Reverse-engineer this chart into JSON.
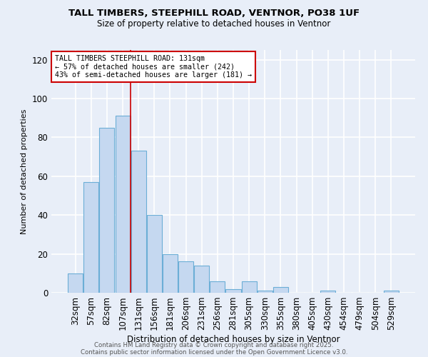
{
  "title_line1": "TALL TIMBERS, STEEPHILL ROAD, VENTNOR, PO38 1UF",
  "title_line2": "Size of property relative to detached houses in Ventnor",
  "xlabel": "Distribution of detached houses by size in Ventnor",
  "ylabel": "Number of detached properties",
  "categories": [
    "32sqm",
    "57sqm",
    "82sqm",
    "107sqm",
    "131sqm",
    "156sqm",
    "181sqm",
    "206sqm",
    "231sqm",
    "256sqm",
    "281sqm",
    "305sqm",
    "330sqm",
    "355sqm",
    "380sqm",
    "405sqm",
    "430sqm",
    "454sqm",
    "479sqm",
    "504sqm",
    "529sqm"
  ],
  "values": [
    10,
    57,
    85,
    91,
    73,
    40,
    20,
    16,
    14,
    6,
    2,
    6,
    1,
    3,
    0,
    0,
    1,
    0,
    0,
    0,
    1
  ],
  "bar_color": "#c5d8f0",
  "bar_edge_color": "#6baed6",
  "vline_index": 4,
  "vline_color": "#cc0000",
  "annotation_text": "TALL TIMBERS STEEPHILL ROAD: 131sqm\n← 57% of detached houses are smaller (242)\n43% of semi-detached houses are larger (181) →",
  "annotation_box_color": "#ffffff",
  "annotation_box_edge_color": "#cc0000",
  "ylim": [
    0,
    125
  ],
  "yticks": [
    0,
    20,
    40,
    60,
    80,
    100,
    120
  ],
  "background_color": "#e8eef8",
  "grid_color": "#ffffff",
  "footer_line1": "Contains HM Land Registry data © Crown copyright and database right 2025.",
  "footer_line2": "Contains public sector information licensed under the Open Government Licence v3.0."
}
